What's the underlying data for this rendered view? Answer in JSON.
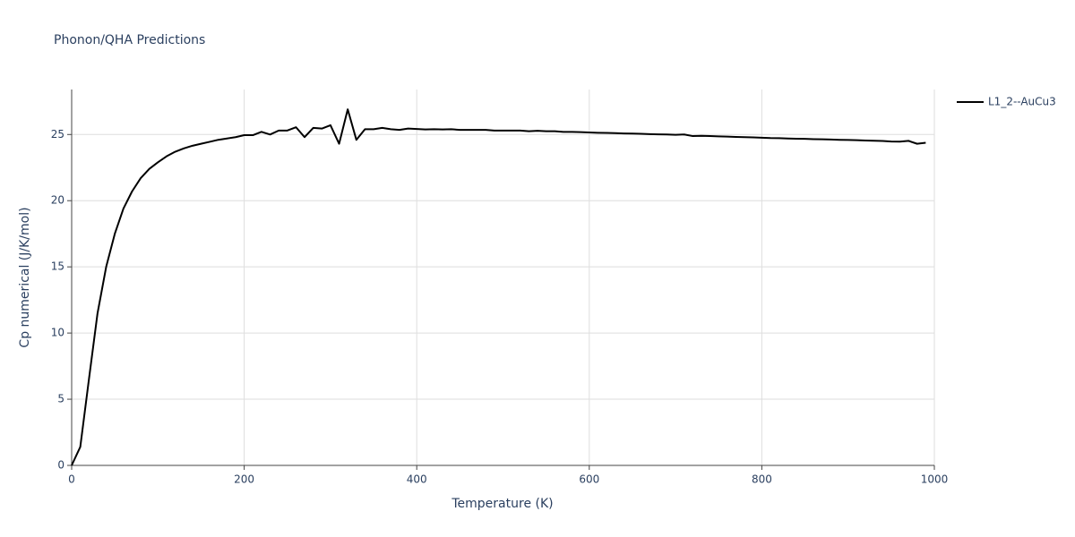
{
  "chart_data": {
    "type": "line",
    "title": "Phonon/QHA Predictions",
    "x_label": "Temperature (K)",
    "y_label": "Cp numerical (J/K/mol)",
    "xlim": [
      0,
      1000
    ],
    "ylim": [
      0,
      28.4
    ],
    "xticks": [
      0,
      200,
      400,
      600,
      800,
      1000
    ],
    "yticks": [
      0,
      5,
      10,
      15,
      20,
      25
    ],
    "grid": true,
    "legend": "right",
    "x": [
      0,
      10,
      20,
      30,
      40,
      50,
      60,
      70,
      80,
      90,
      100,
      110,
      120,
      130,
      140,
      150,
      160,
      170,
      180,
      190,
      200,
      210,
      220,
      230,
      240,
      250,
      260,
      270,
      280,
      290,
      300,
      310,
      320,
      330,
      340,
      350,
      360,
      370,
      380,
      390,
      400,
      410,
      420,
      430,
      440,
      450,
      460,
      470,
      480,
      490,
      500,
      510,
      520,
      530,
      540,
      550,
      560,
      570,
      580,
      590,
      600,
      610,
      620,
      630,
      640,
      650,
      660,
      670,
      680,
      690,
      700,
      710,
      720,
      730,
      740,
      750,
      760,
      770,
      780,
      790,
      800,
      810,
      820,
      830,
      840,
      850,
      860,
      870,
      880,
      890,
      900,
      910,
      920,
      930,
      940,
      950,
      960,
      970,
      980,
      990
    ],
    "series": [
      {
        "name": "L1_2--AuCu3",
        "color": "#000000",
        "values": [
          0,
          1.4,
          6.5,
          11.5,
          15.0,
          17.5,
          19.4,
          20.7,
          21.7,
          22.4,
          22.9,
          23.35,
          23.7,
          23.95,
          24.15,
          24.3,
          24.45,
          24.6,
          24.7,
          24.8,
          24.95,
          24.95,
          25.2,
          25.0,
          25.3,
          25.3,
          25.55,
          24.8,
          25.5,
          25.45,
          25.7,
          24.3,
          26.9,
          24.6,
          25.4,
          25.4,
          25.5,
          25.4,
          25.35,
          25.45,
          25.42,
          25.38,
          25.4,
          25.38,
          25.4,
          25.35,
          25.35,
          25.35,
          25.35,
          25.3,
          25.3,
          25.3,
          25.3,
          25.25,
          25.28,
          25.25,
          25.25,
          25.2,
          25.2,
          25.18,
          25.15,
          25.13,
          25.12,
          25.1,
          25.08,
          25.07,
          25.05,
          25.03,
          25.01,
          25.0,
          24.98,
          25.0,
          24.88,
          24.9,
          24.88,
          24.86,
          24.84,
          24.82,
          24.8,
          24.78,
          24.76,
          24.73,
          24.72,
          24.7,
          24.68,
          24.67,
          24.65,
          24.64,
          24.62,
          24.6,
          24.59,
          24.57,
          24.55,
          24.53,
          24.51,
          24.47,
          24.46,
          24.52,
          24.3,
          24.38
        ]
      }
    ]
  }
}
